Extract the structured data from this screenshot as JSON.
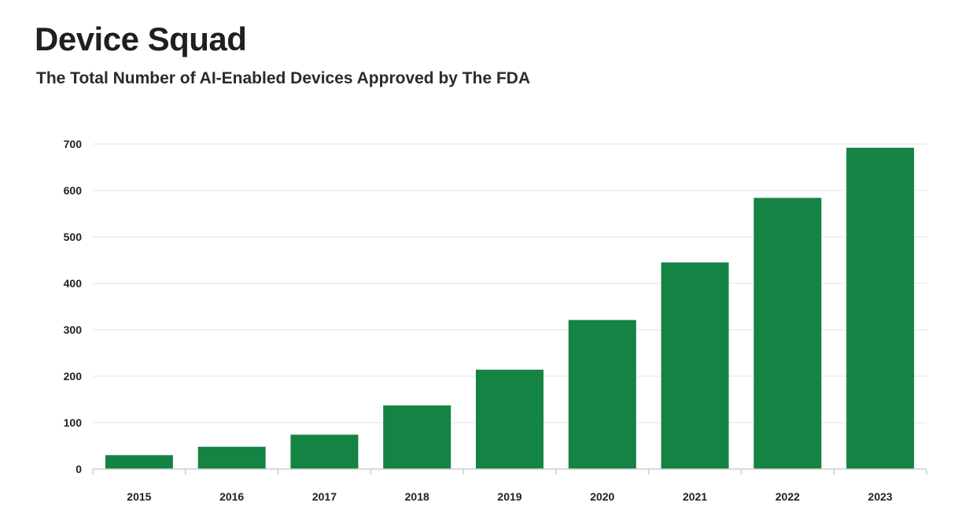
{
  "title": "Device Squad",
  "subtitle": "The Total Number of AI-Enabled Devices Approved by The FDA",
  "colors": {
    "bar": "#148343",
    "grid": "#e3e3e3",
    "axis": "#cfcfcf"
  },
  "chart_data": {
    "type": "bar",
    "categories": [
      "2015",
      "2016",
      "2017",
      "2018",
      "2019",
      "2020",
      "2021",
      "2022",
      "2023"
    ],
    "values": [
      30,
      48,
      74,
      137,
      214,
      321,
      445,
      584,
      692
    ],
    "yticks": [
      0,
      100,
      200,
      300,
      400,
      500,
      600,
      700
    ],
    "ylim": [
      0,
      700
    ],
    "grid": true,
    "legend": "none",
    "xlabel": "",
    "ylabel": ""
  }
}
